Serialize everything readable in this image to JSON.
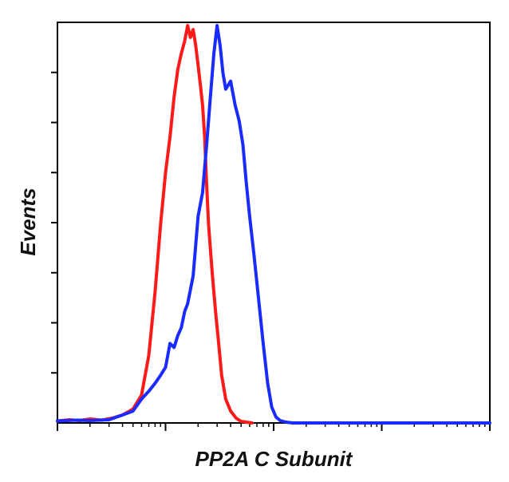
{
  "chart_data": {
    "type": "line",
    "title": "",
    "xlabel": "PP2A C Subunit",
    "ylabel": "Events",
    "xscale": "log",
    "xlim": [
      1,
      10000
    ],
    "ylim": [
      0,
      100
    ],
    "grid": false,
    "legend": "none",
    "x_tick_labels": "none",
    "y_tick_labels": "none",
    "series": [
      {
        "color": "#ff1a1a",
        "x": [
          1,
          1.3,
          1.6,
          2,
          2.6,
          3.2,
          4,
          5,
          6,
          7,
          8,
          9,
          10,
          11,
          12,
          13,
          14,
          15,
          16,
          17,
          18,
          19,
          20,
          21,
          22,
          23,
          24,
          25,
          27,
          29,
          31,
          33,
          36,
          40,
          45,
          50,
          56,
          63
        ],
        "y": [
          0.5,
          0.8,
          0.6,
          1.0,
          0.7,
          1.2,
          2.0,
          3.5,
          7.0,
          17.0,
          33.0,
          50.0,
          63.0,
          72.0,
          82.0,
          89.0,
          93.0,
          96.0,
          100.0,
          97.0,
          99.0,
          95.0,
          90.0,
          85.0,
          80.0,
          72.0,
          60.0,
          50.0,
          38.0,
          28.0,
          20.0,
          12.0,
          6.0,
          3.0,
          1.2,
          0.4,
          0.2,
          0.0
        ]
      },
      {
        "color": "#1a2bff",
        "x": [
          1,
          1.5,
          2,
          3,
          4,
          5,
          6,
          7,
          8,
          9,
          10,
          11,
          12,
          13,
          14,
          15,
          16,
          18,
          20,
          22,
          24,
          26,
          28,
          30,
          32,
          34,
          36,
          40,
          44,
          48,
          52,
          56,
          60,
          66,
          72,
          80,
          88,
          96,
          105,
          115,
          130,
          150,
          1000,
          10000
        ],
        "y": [
          0.5,
          0.7,
          0.6,
          0.8,
          2.0,
          3.0,
          6.0,
          8.0,
          10.0,
          12.0,
          14.0,
          20.0,
          19.0,
          22.0,
          24.0,
          28.0,
          30.0,
          37.0,
          52.0,
          58.0,
          70.0,
          82.0,
          93.0,
          100.0,
          95.0,
          88.0,
          84.0,
          86.0,
          80.0,
          76.0,
          70.0,
          60.0,
          52.0,
          42.0,
          32.0,
          20.0,
          10.0,
          4.0,
          1.5,
          0.6,
          0.2,
          0.0,
          0.0,
          0.0
        ]
      }
    ]
  }
}
